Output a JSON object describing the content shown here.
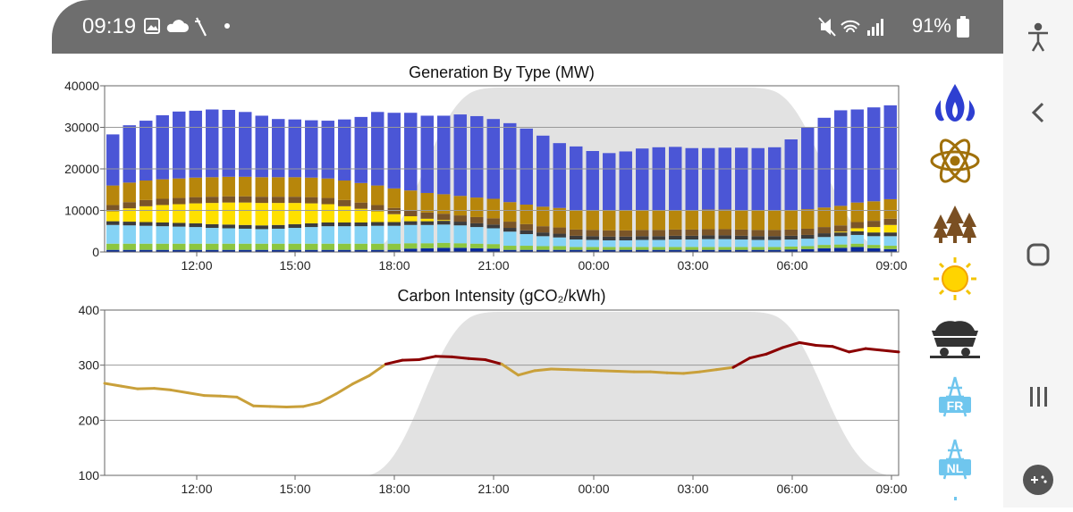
{
  "status_bar": {
    "time": "09:19",
    "battery": "91%",
    "icons_left": [
      "image-icon",
      "cloud-icon",
      "slash-icon",
      "dot-icon"
    ],
    "icons_right": [
      "mute-icon",
      "wifi-icon",
      "signal-icon",
      "battery-icon"
    ]
  },
  "side_icons": [
    "gas-flame-icon",
    "nuclear-atom-icon",
    "biomass-trees-icon",
    "solar-sun-icon",
    "coal-cart-icon",
    "interconnector-fr-icon",
    "interconnector-nl-icon"
  ],
  "side_icon_labels": {
    "fr": "FR",
    "nl": "NL"
  },
  "nav_icons": [
    "accessibility-icon",
    "back-icon",
    "home-icon",
    "recents-icon",
    "game-icon"
  ],
  "colors": {
    "gas": "#4b56d6",
    "nuclear": "#b7860b",
    "biomass": "#7a5528",
    "coal": "#3c3c3c",
    "solar": "#ffe000",
    "wind": "#85d3f5",
    "hydro": "#8cc63f",
    "other": "#0a2a9c",
    "intensity_high": "#8b0000",
    "intensity_mid": "#c9a03a",
    "night_shading": "#e2e2e2"
  },
  "chart_data": [
    {
      "type": "bar",
      "stacked": true,
      "title": "Generation By Type (MW)",
      "x_tick_labels": [
        "12:00",
        "15:00",
        "18:00",
        "21:00",
        "00:00",
        "03:00",
        "06:00",
        "09:00"
      ],
      "ylim": [
        0,
        40000
      ],
      "y_ticks": [
        "0",
        "10000",
        "20000",
        "30000",
        "40000"
      ],
      "grid": true,
      "bar_count": 48,
      "stack_order": [
        "other",
        "hydro",
        "wind",
        "coal",
        "solar",
        "biomass",
        "nuclear",
        "gas"
      ],
      "series": [
        {
          "key": "other",
          "values": [
            500,
            500,
            500,
            500,
            500,
            500,
            500,
            500,
            500,
            500,
            500,
            500,
            500,
            500,
            500,
            500,
            500,
            500,
            800,
            900,
            1000,
            1000,
            900,
            800,
            500,
            500,
            500,
            500,
            500,
            500,
            500,
            500,
            500,
            500,
            500,
            500,
            500,
            500,
            500,
            500,
            500,
            600,
            700,
            900,
            1000,
            1200,
            900,
            700
          ]
        },
        {
          "key": "hydro",
          "values": [
            1500,
            1500,
            1500,
            1500,
            1500,
            1500,
            1500,
            1500,
            1500,
            1500,
            1500,
            1500,
            1500,
            1500,
            1500,
            1500,
            1500,
            1500,
            1300,
            1200,
            1200,
            1100,
            1100,
            1100,
            1000,
            1000,
            900,
            900,
            700,
            700,
            700,
            700,
            700,
            700,
            700,
            700,
            700,
            700,
            700,
            700,
            700,
            700,
            700,
            800,
            800,
            800,
            800,
            800
          ]
        },
        {
          "key": "wind",
          "values": [
            4500,
            4400,
            4300,
            4200,
            4100,
            4000,
            3800,
            3700,
            3600,
            3500,
            3600,
            3800,
            4000,
            4200,
            4200,
            4200,
            4300,
            4300,
            4400,
            4400,
            4400,
            4300,
            4000,
            3800,
            3400,
            2800,
            2400,
            2100,
            1800,
            1700,
            1600,
            1600,
            1700,
            1700,
            1800,
            1800,
            1900,
            1900,
            1800,
            1700,
            1700,
            1700,
            1800,
            1900,
            2000,
            2100,
            2100,
            2300
          ]
        },
        {
          "key": "coal",
          "values": [
            900,
            900,
            900,
            900,
            900,
            900,
            900,
            900,
            900,
            900,
            900,
            900,
            900,
            900,
            900,
            900,
            900,
            900,
            900,
            900,
            900,
            900,
            900,
            900,
            900,
            900,
            900,
            900,
            900,
            900,
            900,
            900,
            900,
            900,
            900,
            900,
            900,
            900,
            900,
            900,
            900,
            900,
            900,
            900,
            900,
            900,
            900,
            900
          ]
        },
        {
          "key": "solar",
          "values": [
            2400,
            3200,
            3800,
            4200,
            4500,
            4800,
            5100,
            5300,
            5400,
            5400,
            5300,
            5100,
            4800,
            4400,
            3900,
            3300,
            2600,
            1900,
            1200,
            600,
            200,
            0,
            0,
            0,
            0,
            0,
            0,
            0,
            0,
            0,
            0,
            0,
            0,
            0,
            0,
            0,
            0,
            0,
            0,
            0,
            0,
            0,
            0,
            0,
            200,
            700,
            1300,
            1800
          ]
        },
        {
          "key": "biomass",
          "values": [
            1500,
            1500,
            1500,
            1500,
            1500,
            1500,
            1500,
            1500,
            1500,
            1500,
            1500,
            1500,
            1500,
            1500,
            1500,
            1500,
            1500,
            1500,
            1500,
            1500,
            1500,
            1500,
            1500,
            1500,
            1500,
            1500,
            1500,
            1500,
            1500,
            1500,
            1500,
            1500,
            1500,
            1500,
            1500,
            1500,
            1500,
            1500,
            1500,
            1500,
            1500,
            1500,
            1500,
            1500,
            1500,
            1500,
            1500,
            1500
          ]
        },
        {
          "key": "nuclear",
          "values": [
            4700,
            4700,
            4700,
            4700,
            4700,
            4700,
            4700,
            4700,
            4700,
            4700,
            4700,
            4700,
            4700,
            4700,
            4700,
            4700,
            4700,
            4700,
            4700,
            4700,
            4700,
            4700,
            4700,
            4700,
            4700,
            4700,
            4700,
            4700,
            4700,
            4700,
            4700,
            4700,
            4700,
            4700,
            4700,
            4700,
            4700,
            4700,
            4700,
            4700,
            4700,
            4700,
            4700,
            4700,
            4700,
            4700,
            4700,
            4700
          ]
        },
        {
          "key": "gas",
          "values": [
            12300,
            13800,
            14400,
            15400,
            16100,
            16100,
            16300,
            16100,
            15600,
            14800,
            14000,
            13900,
            13800,
            13900,
            14700,
            15900,
            17700,
            18200,
            18700,
            18600,
            18900,
            19600,
            19600,
            19200,
            19000,
            18300,
            17100,
            15600,
            15300,
            14300,
            13900,
            14300,
            14900,
            15200,
            15200,
            14900,
            14800,
            14900,
            15000,
            15000,
            15200,
            17000,
            19800,
            21600,
            23000,
            22400,
            22600,
            22600
          ]
        }
      ]
    },
    {
      "type": "line",
      "title": "Carbon Intensity (gCO₂/kWh)",
      "x_tick_labels": [
        "12:00",
        "15:00",
        "18:00",
        "21:00",
        "00:00",
        "03:00",
        "06:00",
        "09:00"
      ],
      "ylim": [
        100,
        400
      ],
      "y_ticks": [
        "100",
        "200",
        "300",
        "400"
      ],
      "grid": true,
      "series": [
        {
          "key": "intensity",
          "x": [
            0,
            0.5,
            1,
            1.5,
            2,
            2.5,
            3,
            3.5,
            4,
            4.5,
            5,
            5.5,
            6,
            6.5,
            7,
            7.5,
            8,
            8.5,
            9,
            9.5,
            10,
            10.5,
            11,
            11.5,
            12,
            12.5,
            13,
            13.5,
            14,
            14.5,
            15,
            15.5,
            16,
            16.5,
            17,
            17.5,
            18,
            18.5,
            19,
            19.5,
            20,
            20.5,
            21,
            21.5,
            22,
            22.5,
            23,
            23.5,
            24
          ],
          "values": [
            267,
            262,
            257,
            258,
            255,
            250,
            245,
            244,
            242,
            226,
            225,
            224,
            225,
            232,
            248,
            266,
            281,
            302,
            309,
            310,
            316,
            315,
            312,
            310,
            302,
            282,
            290,
            293,
            292,
            291,
            290,
            289,
            288,
            288,
            286,
            285,
            288,
            292,
            296,
            313,
            320,
            332,
            341,
            336,
            334,
            324,
            330,
            327,
            324
          ]
        }
      ]
    }
  ]
}
